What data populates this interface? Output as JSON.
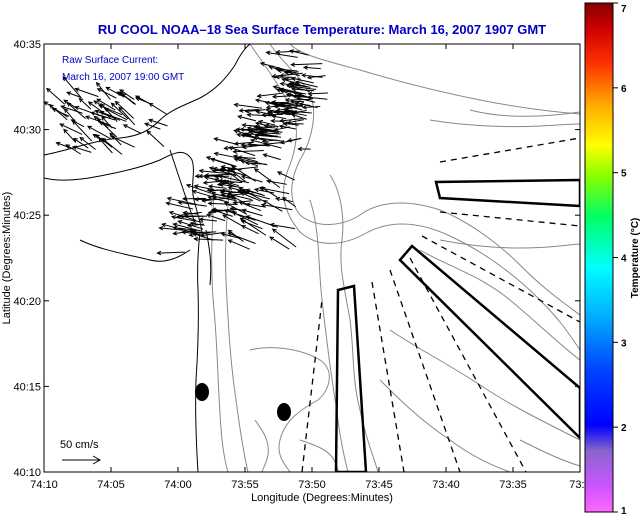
{
  "title": "RU COOL  NOAA–18  Sea Surface Temperature:  March 16, 2007 1907 GMT",
  "inset": {
    "line1": "Raw Surface Current:",
    "line2": "March 16, 2007 19:00 GMT"
  },
  "scale_label": "50 cm/s",
  "axes": {
    "xlabel": "Longitude (Degrees:Minutes)",
    "ylabel": "Latitude (Degrees:Minutes)",
    "xticks": [
      "74:10",
      "74:05",
      "74:00",
      "73:55",
      "73:50",
      "73:45",
      "73:40",
      "73:35",
      "73:3"
    ],
    "yticks": [
      "40:35",
      "40:30",
      "40:25",
      "40:20",
      "40:15",
      "40:10"
    ]
  },
  "colorbar": {
    "label": "Temperature (°C)",
    "ticks": [
      "7",
      "6",
      "5",
      "4",
      "3",
      "2",
      "1"
    ],
    "min": 1,
    "max": 7
  },
  "colors": {
    "title": "#0000c8",
    "inset": "#0000c8",
    "bathymetry": "#888888",
    "coast": "#000000"
  }
}
